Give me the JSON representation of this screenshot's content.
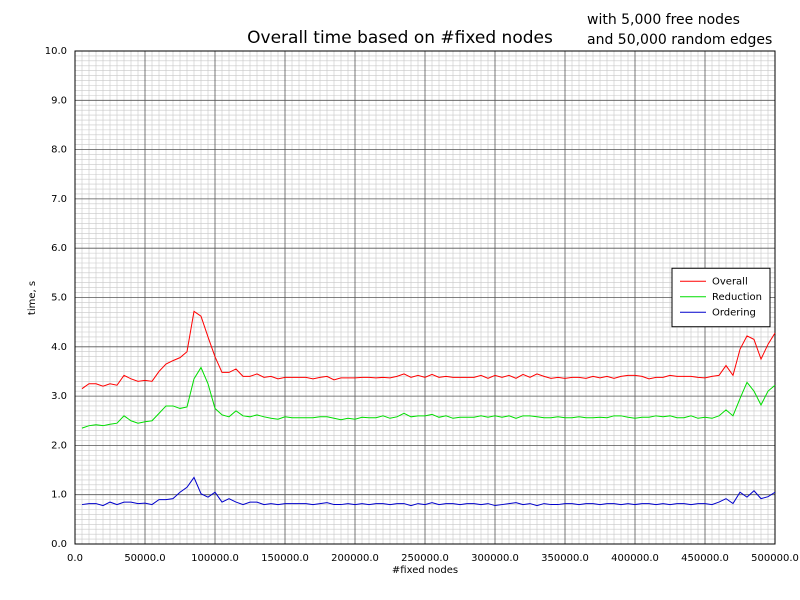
{
  "chart_data": {
    "type": "line",
    "title": "Overall time based on #fixed nodes",
    "annotations": [
      "with 5,000 free nodes",
      "and 50,000 random edges"
    ],
    "x_label": "#fixed nodes",
    "y_label": "time, s",
    "x": [
      5000,
      10000,
      15000,
      20000,
      25000,
      30000,
      35000,
      40000,
      45000,
      50000,
      55000,
      60000,
      65000,
      70000,
      75000,
      80000,
      85000,
      90000,
      95000,
      100000,
      105000,
      110000,
      115000,
      120000,
      125000,
      130000,
      135000,
      140000,
      145000,
      150000,
      155000,
      160000,
      165000,
      170000,
      175000,
      180000,
      185000,
      190000,
      195000,
      200000,
      205000,
      210000,
      215000,
      220000,
      225000,
      230000,
      235000,
      240000,
      245000,
      250000,
      255000,
      260000,
      265000,
      270000,
      275000,
      280000,
      285000,
      290000,
      295000,
      300000,
      305000,
      310000,
      315000,
      320000,
      325000,
      330000,
      335000,
      340000,
      345000,
      350000,
      355000,
      360000,
      365000,
      370000,
      375000,
      380000,
      385000,
      390000,
      395000,
      400000,
      405000,
      410000,
      415000,
      420000,
      425000,
      430000,
      435000,
      440000,
      445000,
      450000,
      455000,
      460000,
      465000,
      470000,
      475000,
      480000,
      485000,
      490000,
      495000,
      500000
    ],
    "series": [
      {
        "name": "Overall",
        "color": "#ff0000",
        "values": [
          3.15,
          3.25,
          3.25,
          3.2,
          3.25,
          3.22,
          3.42,
          3.35,
          3.3,
          3.32,
          3.3,
          3.5,
          3.65,
          3.72,
          3.78,
          3.9,
          4.72,
          4.62,
          4.2,
          3.8,
          3.48,
          3.48,
          3.55,
          3.4,
          3.4,
          3.45,
          3.38,
          3.4,
          3.35,
          3.38,
          3.38,
          3.38,
          3.38,
          3.35,
          3.38,
          3.4,
          3.33,
          3.37,
          3.37,
          3.37,
          3.38,
          3.38,
          3.37,
          3.38,
          3.37,
          3.4,
          3.45,
          3.38,
          3.42,
          3.38,
          3.44,
          3.38,
          3.4,
          3.38,
          3.38,
          3.38,
          3.38,
          3.42,
          3.36,
          3.42,
          3.38,
          3.42,
          3.36,
          3.44,
          3.38,
          3.45,
          3.4,
          3.36,
          3.38,
          3.36,
          3.38,
          3.38,
          3.36,
          3.4,
          3.37,
          3.4,
          3.36,
          3.4,
          3.42,
          3.42,
          3.4,
          3.35,
          3.38,
          3.38,
          3.42,
          3.4,
          3.4,
          3.4,
          3.38,
          3.37,
          3.4,
          3.42,
          3.62,
          3.42,
          3.95,
          4.22,
          4.15,
          3.75,
          4.05,
          4.28
        ]
      },
      {
        "name": "Reduction",
        "color": "#00dd00",
        "values": [
          2.35,
          2.4,
          2.42,
          2.4,
          2.43,
          2.45,
          2.6,
          2.5,
          2.45,
          2.48,
          2.5,
          2.65,
          2.8,
          2.8,
          2.75,
          2.78,
          3.35,
          3.58,
          3.25,
          2.75,
          2.62,
          2.58,
          2.7,
          2.6,
          2.58,
          2.62,
          2.58,
          2.55,
          2.53,
          2.58,
          2.56,
          2.56,
          2.56,
          2.56,
          2.58,
          2.58,
          2.55,
          2.52,
          2.55,
          2.53,
          2.57,
          2.56,
          2.56,
          2.6,
          2.55,
          2.58,
          2.65,
          2.58,
          2.6,
          2.6,
          2.63,
          2.57,
          2.6,
          2.55,
          2.57,
          2.57,
          2.57,
          2.6,
          2.57,
          2.6,
          2.57,
          2.6,
          2.55,
          2.6,
          2.6,
          2.58,
          2.56,
          2.56,
          2.58,
          2.56,
          2.56,
          2.58,
          2.56,
          2.56,
          2.57,
          2.56,
          2.6,
          2.6,
          2.57,
          2.55,
          2.57,
          2.57,
          2.6,
          2.58,
          2.6,
          2.56,
          2.56,
          2.6,
          2.55,
          2.57,
          2.55,
          2.6,
          2.72,
          2.6,
          2.95,
          3.28,
          3.1,
          2.82,
          3.1,
          3.22
        ]
      },
      {
        "name": "Ordering",
        "color": "#0000cc",
        "values": [
          0.8,
          0.82,
          0.82,
          0.78,
          0.85,
          0.8,
          0.85,
          0.85,
          0.82,
          0.83,
          0.8,
          0.9,
          0.9,
          0.92,
          1.05,
          1.15,
          1.35,
          1.02,
          0.95,
          1.05,
          0.85,
          0.92,
          0.85,
          0.8,
          0.85,
          0.85,
          0.8,
          0.82,
          0.8,
          0.82,
          0.82,
          0.82,
          0.82,
          0.8,
          0.82,
          0.84,
          0.8,
          0.8,
          0.82,
          0.8,
          0.82,
          0.8,
          0.82,
          0.82,
          0.8,
          0.82,
          0.82,
          0.78,
          0.82,
          0.8,
          0.84,
          0.8,
          0.82,
          0.82,
          0.8,
          0.82,
          0.82,
          0.8,
          0.82,
          0.78,
          0.8,
          0.82,
          0.84,
          0.8,
          0.82,
          0.78,
          0.82,
          0.8,
          0.8,
          0.82,
          0.82,
          0.8,
          0.82,
          0.82,
          0.8,
          0.82,
          0.82,
          0.8,
          0.82,
          0.8,
          0.82,
          0.82,
          0.8,
          0.82,
          0.8,
          0.82,
          0.82,
          0.8,
          0.82,
          0.82,
          0.8,
          0.85,
          0.92,
          0.82,
          1.05,
          0.95,
          1.08,
          0.92,
          0.96,
          1.05
        ]
      }
    ],
    "xlim": [
      0,
      500000
    ],
    "xticks": [
      {
        "value": 0,
        "label": "0.0"
      },
      {
        "value": 50000,
        "label": "50000.0"
      },
      {
        "value": 100000,
        "label": "100000.0"
      },
      {
        "value": 150000,
        "label": "150000.0"
      },
      {
        "value": 200000,
        "label": "200000.0"
      },
      {
        "value": 250000,
        "label": "250000.0"
      },
      {
        "value": 300000,
        "label": "300000.0"
      },
      {
        "value": 350000,
        "label": "350000.0"
      },
      {
        "value": 400000,
        "label": "400000.0"
      },
      {
        "value": 450000,
        "label": "450000.0"
      },
      {
        "value": 500000,
        "label": "500000.0"
      }
    ],
    "ylim": [
      0,
      10
    ],
    "yticks": [
      {
        "value": 0,
        "label": "0.0"
      },
      {
        "value": 1,
        "label": "1.0"
      },
      {
        "value": 2,
        "label": "2.0"
      },
      {
        "value": 3,
        "label": "3.0"
      },
      {
        "value": 4,
        "label": "4.0"
      },
      {
        "value": 5,
        "label": "5.0"
      },
      {
        "value": 6,
        "label": "6.0"
      },
      {
        "value": 7,
        "label": "7.0"
      },
      {
        "value": 8,
        "label": "8.0"
      },
      {
        "value": 9,
        "label": "9.0"
      },
      {
        "value": 10,
        "label": "10.0"
      }
    ],
    "grid": true,
    "legend_position": "center right"
  }
}
